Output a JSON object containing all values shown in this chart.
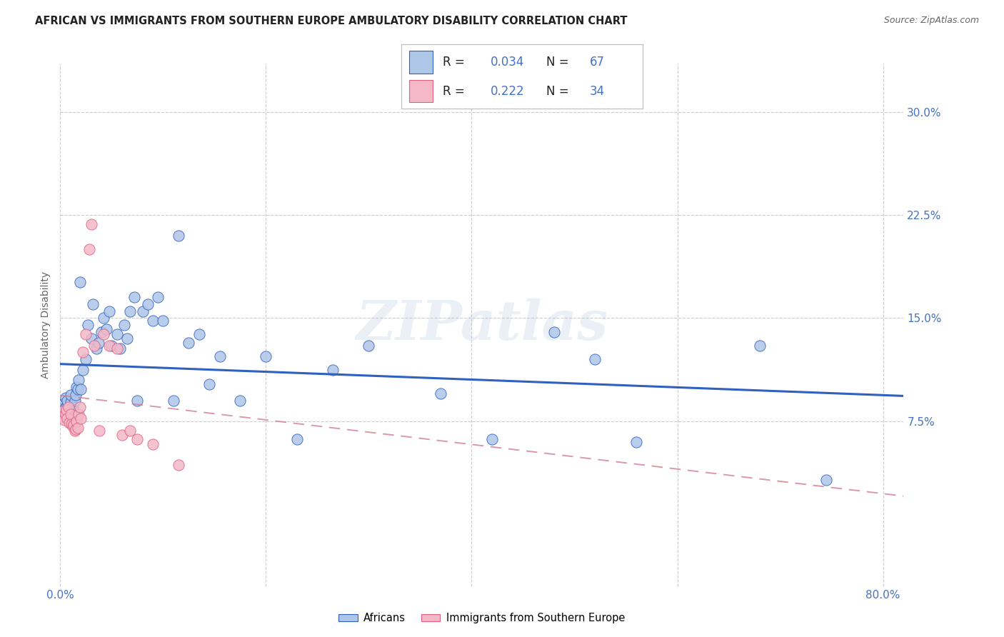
{
  "title": "AFRICAN VS IMMIGRANTS FROM SOUTHERN EUROPE AMBULATORY DISABILITY CORRELATION CHART",
  "source": "Source: ZipAtlas.com",
  "ylabel": "Ambulatory Disability",
  "xlim": [
    0.0,
    0.82
  ],
  "ylim": [
    -0.045,
    0.335
  ],
  "yticks": [
    0.075,
    0.15,
    0.225,
    0.3
  ],
  "ytick_labels": [
    "7.5%",
    "15.0%",
    "22.5%",
    "30.0%"
  ],
  "xticks": [
    0.0,
    0.2,
    0.4,
    0.6,
    0.8
  ],
  "xtick_labels": [
    "0.0%",
    "",
    "",
    "",
    "80.0%"
  ],
  "africans_color": "#aec6e8",
  "immigrants_color": "#f4b8c8",
  "line_africans_color": "#3060c0",
  "line_immigrants_color": "#e06080",
  "background_color": "#ffffff",
  "grid_color": "#cccccc",
  "watermark": "ZIPatlas",
  "africans_x": [
    0.001,
    0.002,
    0.003,
    0.003,
    0.004,
    0.005,
    0.005,
    0.006,
    0.007,
    0.007,
    0.008,
    0.009,
    0.01,
    0.01,
    0.011,
    0.012,
    0.013,
    0.014,
    0.015,
    0.015,
    0.016,
    0.017,
    0.018,
    0.019,
    0.02,
    0.022,
    0.025,
    0.027,
    0.03,
    0.032,
    0.035,
    0.037,
    0.04,
    0.042,
    0.045,
    0.048,
    0.05,
    0.055,
    0.058,
    0.062,
    0.065,
    0.068,
    0.072,
    0.075,
    0.08,
    0.085,
    0.09,
    0.095,
    0.1,
    0.11,
    0.115,
    0.125,
    0.135,
    0.145,
    0.155,
    0.175,
    0.2,
    0.23,
    0.265,
    0.3,
    0.37,
    0.42,
    0.48,
    0.52,
    0.56,
    0.68,
    0.745
  ],
  "africans_y": [
    0.082,
    0.084,
    0.08,
    0.088,
    0.079,
    0.085,
    0.092,
    0.078,
    0.087,
    0.09,
    0.076,
    0.083,
    0.089,
    0.094,
    0.078,
    0.085,
    0.082,
    0.09,
    0.079,
    0.094,
    0.1,
    0.098,
    0.105,
    0.176,
    0.098,
    0.112,
    0.12,
    0.145,
    0.135,
    0.16,
    0.128,
    0.132,
    0.14,
    0.15,
    0.142,
    0.155,
    0.13,
    0.138,
    0.128,
    0.145,
    0.135,
    0.155,
    0.165,
    0.09,
    0.155,
    0.16,
    0.148,
    0.165,
    0.148,
    0.09,
    0.21,
    0.132,
    0.138,
    0.102,
    0.122,
    0.09,
    0.122,
    0.062,
    0.112,
    0.13,
    0.095,
    0.062,
    0.14,
    0.12,
    0.06,
    0.13,
    0.032
  ],
  "immigrants_x": [
    0.001,
    0.002,
    0.003,
    0.004,
    0.005,
    0.006,
    0.007,
    0.008,
    0.009,
    0.01,
    0.011,
    0.012,
    0.013,
    0.014,
    0.015,
    0.016,
    0.017,
    0.018,
    0.019,
    0.02,
    0.022,
    0.025,
    0.028,
    0.03,
    0.033,
    0.038,
    0.042,
    0.048,
    0.055,
    0.06,
    0.068,
    0.075,
    0.09,
    0.115
  ],
  "immigrants_y": [
    0.078,
    0.082,
    0.079,
    0.076,
    0.08,
    0.083,
    0.077,
    0.085,
    0.074,
    0.08,
    0.073,
    0.071,
    0.072,
    0.068,
    0.069,
    0.075,
    0.07,
    0.08,
    0.085,
    0.077,
    0.125,
    0.138,
    0.2,
    0.218,
    0.13,
    0.068,
    0.138,
    0.13,
    0.128,
    0.065,
    0.068,
    0.062,
    0.058,
    0.043
  ]
}
